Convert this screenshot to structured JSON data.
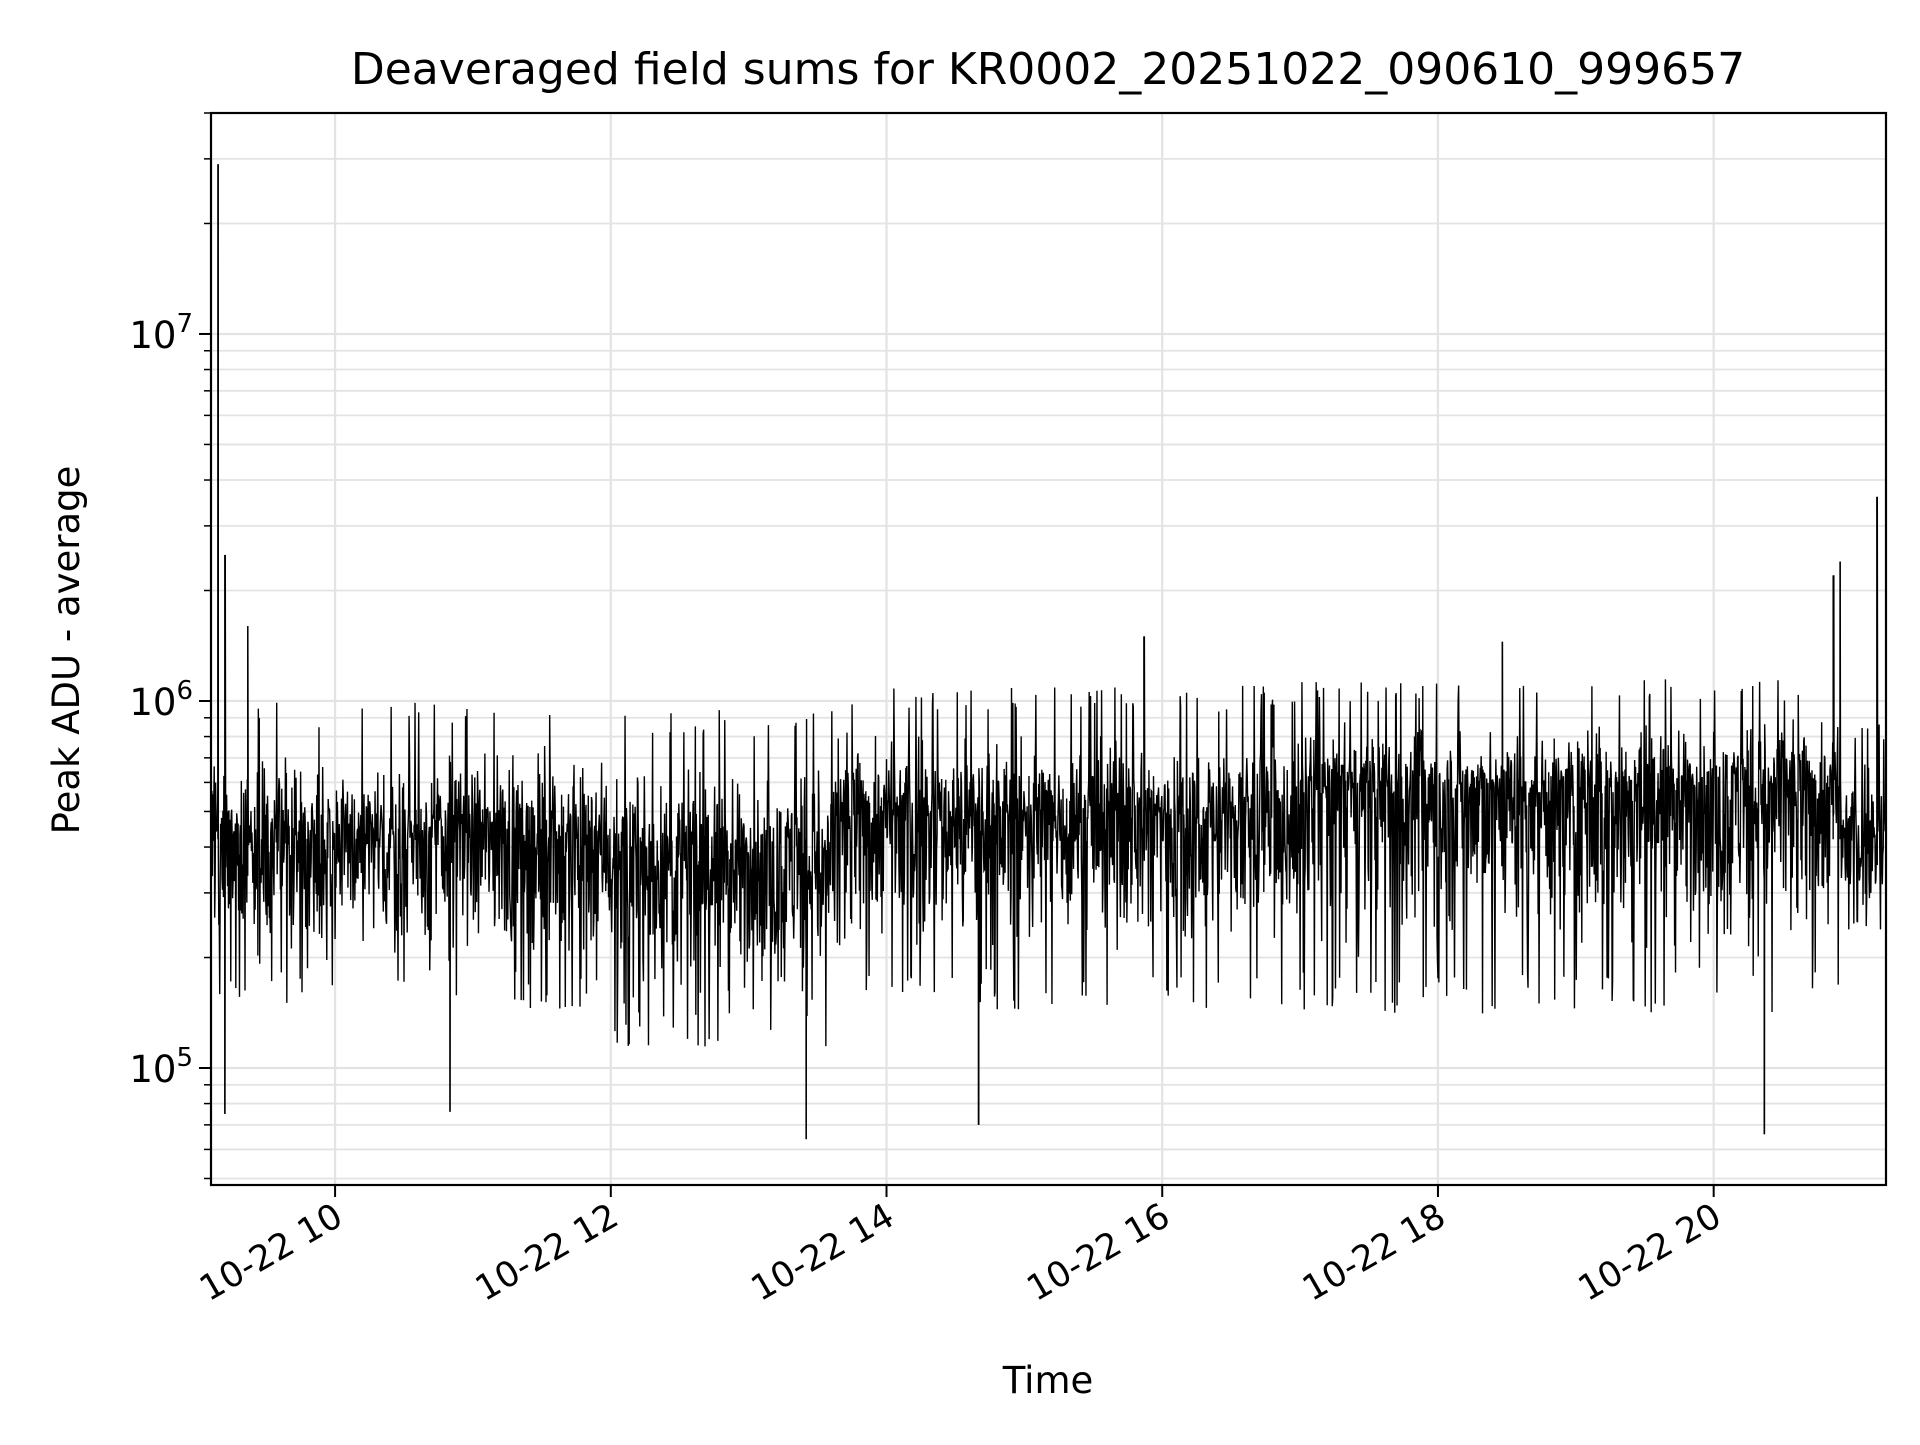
{
  "chart_data": {
    "type": "line",
    "title": "Deaveraged field sums for KR0002_20251022_090610_999657",
    "xlabel": "Time",
    "ylabel": "Peak ADU - average",
    "x_axis": {
      "kind": "datetime",
      "range": [
        "2025-10-22 09:06",
        "2025-10-22 21:15"
      ],
      "ticks": [
        "2025-10-22 10:00",
        "2025-10-22 12:00",
        "2025-10-22 14:00",
        "2025-10-22 16:00",
        "2025-10-22 18:00",
        "2025-10-22 20:00"
      ],
      "tick_labels": [
        "10-22 10",
        "10-22 12",
        "10-22 14",
        "10-22 16",
        "10-22 18",
        "10-22 20"
      ]
    },
    "y_axis": {
      "scale": "log",
      "range": [
        48000,
        40000000
      ],
      "major_ticks": [
        100000,
        1000000,
        10000000
      ],
      "major_tick_labels": [
        {
          "base": "10",
          "exp": "5"
        },
        {
          "base": "10",
          "exp": "6"
        },
        {
          "base": "10",
          "exp": "7"
        }
      ]
    },
    "grid": true,
    "line_color": "#000000",
    "series": [
      {
        "description_of_shape": "dense noisy trace",
        "segments": [
          {
            "start": "2025-10-22 09:06",
            "end": "2025-10-22 12:00",
            "median": 420000,
            "low": 150000,
            "high": 1000000
          },
          {
            "start": "2025-10-22 12:00",
            "end": "2025-10-22 13:40",
            "median": 360000,
            "low": 120000,
            "high": 950000
          },
          {
            "start": "2025-10-22 13:40",
            "end": "2025-10-22 17:00",
            "median": 480000,
            "low": 150000,
            "high": 1100000
          },
          {
            "start": "2025-10-22 17:00",
            "end": "2025-10-22 20:55",
            "median": 560000,
            "low": 150000,
            "high": 1150000
          },
          {
            "start": "2025-10-22 20:55",
            "end": "2025-10-22 21:15",
            "median": 420000,
            "low": 230000,
            "high": 900000
          }
        ],
        "spikes": [
          {
            "x": "2025-10-22 09:09",
            "y": 29000000
          },
          {
            "x": "2025-10-22 09:12",
            "y": 2500000
          },
          {
            "x": "2025-10-22 09:12",
            "y": 75000
          },
          {
            "x": "2025-10-22 09:22",
            "y": 1600000
          },
          {
            "x": "2025-10-22 10:50",
            "y": 76000
          },
          {
            "x": "2025-10-22 13:25",
            "y": 64000
          },
          {
            "x": "2025-10-22 14:40",
            "y": 70000
          },
          {
            "x": "2025-10-22 15:52",
            "y": 1500000
          },
          {
            "x": "2025-10-22 18:28",
            "y": 1450000
          },
          {
            "x": "2025-10-22 20:22",
            "y": 66000
          },
          {
            "x": "2025-10-22 20:52",
            "y": 2200000
          },
          {
            "x": "2025-10-22 20:55",
            "y": 2400000
          },
          {
            "x": "2025-10-22 21:11",
            "y": 3600000
          }
        ]
      }
    ]
  }
}
